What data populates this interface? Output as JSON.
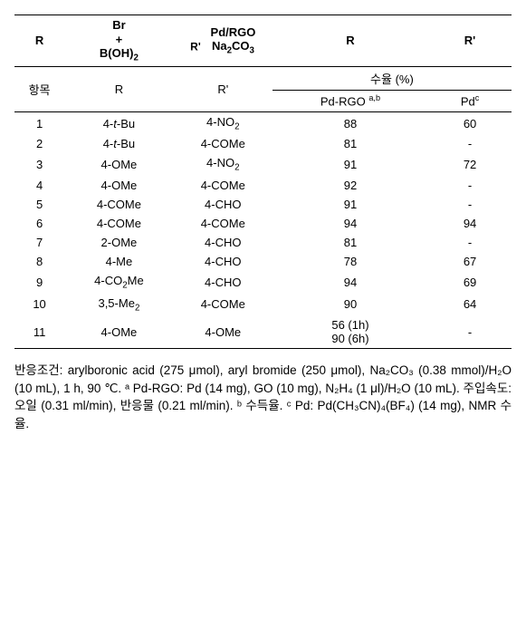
{
  "colors": {
    "background": "#ffffff",
    "text": "#000000",
    "border": "#000000"
  },
  "table": {
    "type": "table",
    "scheme": {
      "R_left": "R",
      "Br": "Br",
      "plus": "+",
      "BOH2": "B(OH)",
      "BOH2_sub": "2",
      "R_prime": "R'",
      "Pd_rgo": "Pd/RGO",
      "base": "Na",
      "base_sub1": "2",
      "base_rest": "CO",
      "base_sub2": "3",
      "R_right": "R",
      "R_prime_right": "R'"
    },
    "headers": {
      "idx": "항목",
      "R": "R",
      "Rp": "R'",
      "yield_group": "수율 (%)",
      "yield1": "Pd-RGO",
      "yield1_sup": "a,b",
      "yield2": "Pd",
      "yield2_sup": "c"
    },
    "rows": [
      {
        "idx": "1",
        "R_prefix": "4-",
        "R_ital": "t",
        "R_rest": "-Bu",
        "Rp": "4-NO",
        "Rp_sub": "2",
        "y1": "88",
        "y2": "60"
      },
      {
        "idx": "2",
        "R_prefix": "4-",
        "R_ital": "t",
        "R_rest": "-Bu",
        "Rp": "4-COMe",
        "Rp_sub": "",
        "y1": "81",
        "y2": "-"
      },
      {
        "idx": "3",
        "R_prefix": "4-OMe",
        "R_ital": "",
        "R_rest": "",
        "Rp": "4-NO",
        "Rp_sub": "2",
        "y1": "91",
        "y2": "72"
      },
      {
        "idx": "4",
        "R_prefix": "4-OMe",
        "R_ital": "",
        "R_rest": "",
        "Rp": "4-COMe",
        "Rp_sub": "",
        "y1": "92",
        "y2": "-"
      },
      {
        "idx": "5",
        "R_prefix": "4-COMe",
        "R_ital": "",
        "R_rest": "",
        "Rp": "4-CHO",
        "Rp_sub": "",
        "y1": "91",
        "y2": "-"
      },
      {
        "idx": "6",
        "R_prefix": "4-COMe",
        "R_ital": "",
        "R_rest": "",
        "Rp": "4-COMe",
        "Rp_sub": "",
        "y1": "94",
        "y2": "94"
      },
      {
        "idx": "7",
        "R_prefix": "2-OMe",
        "R_ital": "",
        "R_rest": "",
        "Rp": "4-CHO",
        "Rp_sub": "",
        "y1": "81",
        "y2": "-"
      },
      {
        "idx": "8",
        "R_prefix": "4-Me",
        "R_ital": "",
        "R_rest": "",
        "Rp": "4-CHO",
        "Rp_sub": "",
        "y1": "78",
        "y2": "67"
      },
      {
        "idx": "9",
        "R_prefix": "4-CO",
        "R_ital": "",
        "R_rest": "Me",
        "R_sub_between": "2",
        "Rp": "4-CHO",
        "Rp_sub": "",
        "y1": "94",
        "y2": "69"
      },
      {
        "idx": "10",
        "R_prefix": "3,5-Me",
        "R_ital": "",
        "R_rest": "",
        "R_sub_end": "2",
        "Rp": "4-COMe",
        "Rp_sub": "",
        "y1": "90",
        "y2": "64"
      },
      {
        "idx": "11",
        "R_prefix": "4-OMe",
        "R_ital": "",
        "R_rest": "",
        "Rp": "4-OMe",
        "Rp_sub": "",
        "y1_line1": "56 (1h)",
        "y1_line2": "90 (6h)",
        "y2": "-"
      }
    ]
  },
  "footnote": {
    "text": "반응조건: arylboronic acid (275 μmol), aryl bromide (250 μmol), Na₂CO₃ (0.38 mmol)/H₂O (10 mL), 1 h, 90 ℃. ᵃ Pd-RGO: Pd (14 mg), GO (10 mg), N₂H₄ (1 μl)/H₂O (10 mL). 주입속도: 오일 (0.31 ml/min), 반응물 (0.21 ml/min). ᵇ 수득율. ᶜ Pd: Pd(CH₃CN)₄(BF₄) (14 mg), NMR 수율."
  }
}
